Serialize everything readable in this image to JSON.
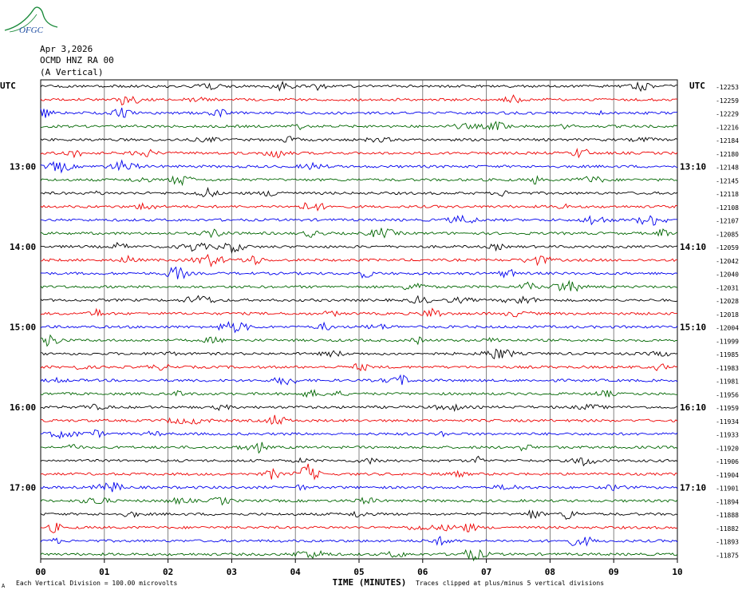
{
  "header": {
    "logo_text": "OFGC",
    "date": "Apr 3,2026",
    "station": "OCMD HNZ RA 00",
    "component": "(A Vertical)"
  },
  "chart_data": {
    "type": "line",
    "description_left_label": "UTC",
    "description_right_label": "UTC",
    "xlabel": "TIME (MINUTES)",
    "xlim": [
      0,
      10
    ],
    "x_ticks": [
      "00",
      "01",
      "02",
      "03",
      "04",
      "05",
      "06",
      "07",
      "08",
      "09",
      "10"
    ],
    "left_time_labels": [
      {
        "row": 6,
        "label": "13:00"
      },
      {
        "row": 12,
        "label": "14:00"
      },
      {
        "row": 18,
        "label": "15:00"
      },
      {
        "row": 24,
        "label": "16:00"
      },
      {
        "row": 30,
        "label": "17:00"
      }
    ],
    "right_time_labels": [
      {
        "row": 6,
        "label": "13:10"
      },
      {
        "row": 12,
        "label": "14:10"
      },
      {
        "row": 18,
        "label": "15:10"
      },
      {
        "row": 24,
        "label": "16:10"
      },
      {
        "row": 30,
        "label": "17:10"
      }
    ],
    "trace_colors": [
      "#000000",
      "#ee0000",
      "#0000ee",
      "#006600"
    ],
    "trace_offsets": [
      "-12253",
      "-12259",
      "-12229",
      "-12216",
      "-12184",
      "-12180",
      "-12148",
      "-12145",
      "-12118",
      "-12108",
      "-12107",
      "-12085",
      "-12059",
      "-12042",
      "-12040",
      "-12031",
      "-12028",
      "-12018",
      "-12004",
      "-11999",
      "-11985",
      "-11983",
      "-11981",
      "-11956",
      "-11959",
      "-11934",
      "-11933",
      "-11920",
      "-11906",
      "-11904",
      "-11901",
      "-11894",
      "-11888",
      "-11882",
      "-11893",
      "-11875"
    ],
    "footer_left_small": "A",
    "footer_scale": "Each Vertical Division =  100.00 microvolts",
    "footer_clip": "Traces clipped at plus/minus 5 vertical divisions",
    "logo_color": "#1a8a3a"
  }
}
